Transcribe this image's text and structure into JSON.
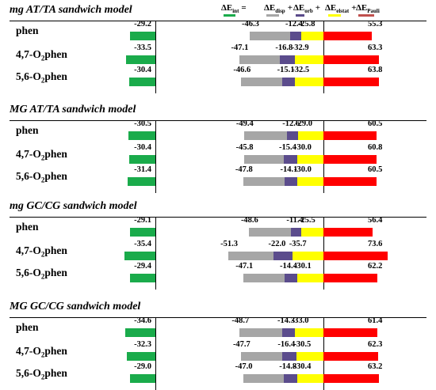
{
  "legend": {
    "items": [
      {
        "symbol": "ΔE",
        "sub": "int",
        "op": "=",
        "color": "#1aab4b"
      },
      {
        "symbol": "ΔE",
        "sub": "disp",
        "op": "+",
        "color": "#a6a6a6"
      },
      {
        "symbol": "ΔE",
        "sub": "orb",
        "op": "+",
        "color": "#5a4a8a"
      },
      {
        "symbol": "ΔE",
        "sub": "elstat",
        "op": "+",
        "color": "#ffff00"
      },
      {
        "symbol": "ΔE",
        "sub": "Pauli",
        "op": "",
        "color": "#c0504d"
      }
    ]
  },
  "colors": {
    "int": "#1aab4b",
    "disp": "#a6a6a6",
    "orb": "#5b4c8c",
    "elstat": "#ffff00",
    "pauli": "#ff0000"
  },
  "chart_data": {
    "type": "bar",
    "series_order": [
      "int",
      "disp",
      "orb",
      "elstat",
      "pauli"
    ],
    "panels": [
      {
        "title": "mg AT/TA sandwich model",
        "rows": [
          {
            "base": "phen",
            "pre": "",
            "sub": "",
            "post": "",
            "int": -29.2,
            "disp": -46.3,
            "orb": -12.4,
            "elstat": -25.8,
            "pauli": 55.3
          },
          {
            "base": "",
            "pre": "4,7-O",
            "sub": "2",
            "post": "phen",
            "int": -33.5,
            "disp": -47.1,
            "orb": -16.8,
            "elstat": -32.9,
            "pauli": 63.3
          },
          {
            "base": "",
            "pre": "5,6-O",
            "sub": "2",
            "post": "phen",
            "int": -30.4,
            "disp": -46.6,
            "orb": -15.1,
            "elstat": -32.5,
            "pauli": 63.8
          }
        ]
      },
      {
        "title": "MG AT/TA sandwich model",
        "rows": [
          {
            "base": "phen",
            "pre": "",
            "sub": "",
            "post": "",
            "int": -30.5,
            "disp": -49.4,
            "orb": -12.6,
            "elstat": -29.0,
            "pauli": 60.5
          },
          {
            "base": "",
            "pre": "4,7-O",
            "sub": "2",
            "post": "phen",
            "int": -30.4,
            "disp": -45.8,
            "orb": -15.4,
            "elstat": -30.0,
            "pauli": 60.8
          },
          {
            "base": "",
            "pre": "5,6-O",
            "sub": "2",
            "post": "phen",
            "int": -31.4,
            "disp": -47.8,
            "orb": -14.1,
            "elstat": -30.0,
            "pauli": 60.5
          }
        ]
      },
      {
        "title": "mg GC/CG sandwich model",
        "rows": [
          {
            "base": "phen",
            "pre": "",
            "sub": "",
            "post": "",
            "int": -29.1,
            "disp": -48.6,
            "orb": -11.4,
            "elstat": -25.5,
            "pauli": 56.4
          },
          {
            "base": "",
            "pre": "4,7-O",
            "sub": "2",
            "post": "phen",
            "int": -35.4,
            "disp": -51.3,
            "orb": -22.0,
            "elstat": -35.7,
            "pauli": 73.6
          },
          {
            "base": "",
            "pre": "5,6-O",
            "sub": "2",
            "post": "phen",
            "int": -29.4,
            "disp": -47.1,
            "orb": -14.4,
            "elstat": -30.1,
            "pauli": 62.2
          }
        ]
      },
      {
        "title": "MG GC/CG sandwich model",
        "rows": [
          {
            "base": "phen",
            "pre": "",
            "sub": "",
            "post": "",
            "int": -34.6,
            "disp": -48.7,
            "orb": -14.3,
            "elstat": -33.0,
            "pauli": 61.4
          },
          {
            "base": "",
            "pre": "4,7-O",
            "sub": "2",
            "post": "phen",
            "int": -32.3,
            "disp": -47.7,
            "orb": -16.4,
            "elstat": -30.5,
            "pauli": 62.3
          },
          {
            "base": "",
            "pre": "5,6-O",
            "sub": "2",
            "post": "phen",
            "int": -29.0,
            "disp": -47.0,
            "orb": -14.8,
            "elstat": -30.4,
            "pauli": 63.2
          }
        ]
      }
    ]
  }
}
